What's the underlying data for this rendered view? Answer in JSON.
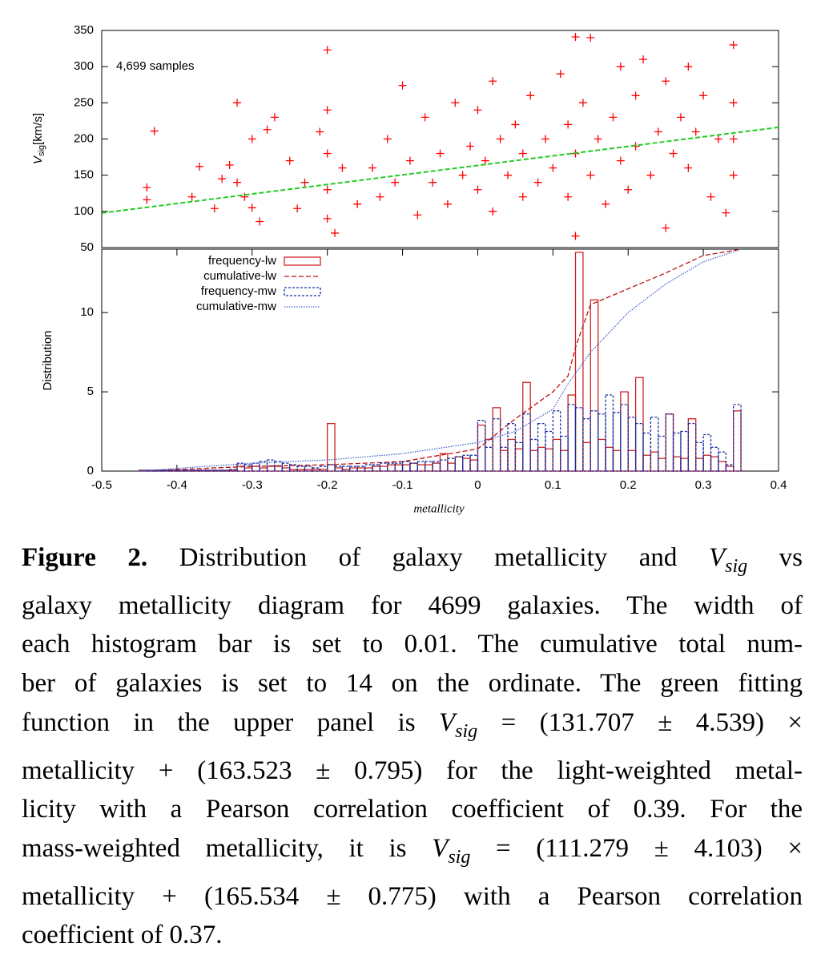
{
  "chart_data": [
    {
      "type": "scatter",
      "annotation": "4,699 samples",
      "ylabel": {
        "symbol": "V",
        "subscript": "sig",
        "unit": "[km/s]"
      },
      "xlim": [
        -0.5,
        0.4
      ],
      "ylim": [
        50,
        350
      ],
      "yticks": [
        50,
        100,
        150,
        200,
        250,
        300,
        350
      ],
      "color": "#ff0000",
      "x": [
        -0.44,
        -0.44,
        -0.43,
        -0.38,
        -0.37,
        -0.35,
        -0.34,
        -0.33,
        -0.32,
        -0.32,
        -0.31,
        -0.3,
        -0.3,
        -0.29,
        -0.28,
        -0.27,
        -0.25,
        -0.24,
        -0.23,
        -0.21,
        -0.2,
        -0.2,
        -0.2,
        -0.2,
        -0.2,
        -0.19,
        -0.18,
        -0.16,
        -0.14,
        -0.13,
        -0.12,
        -0.11,
        -0.1,
        -0.09,
        -0.08,
        -0.07,
        -0.06,
        -0.05,
        -0.04,
        -0.03,
        -0.02,
        -0.01,
        0.0,
        0.0,
        0.01,
        0.02,
        0.02,
        0.03,
        0.04,
        0.05,
        0.06,
        0.06,
        0.07,
        0.08,
        0.09,
        0.1,
        0.11,
        0.12,
        0.12,
        0.13,
        0.13,
        0.13,
        0.14,
        0.15,
        0.15,
        0.16,
        0.17,
        0.18,
        0.19,
        0.19,
        0.2,
        0.21,
        0.21,
        0.22,
        0.23,
        0.24,
        0.25,
        0.25,
        0.26,
        0.27,
        0.28,
        0.28,
        0.29,
        0.3,
        0.31,
        0.32,
        0.33,
        0.34,
        0.34,
        0.34,
        0.34
      ],
      "values": [
        133,
        116,
        211,
        120,
        162,
        104,
        145,
        164,
        250,
        140,
        120,
        200,
        105,
        86,
        213,
        230,
        170,
        104,
        140,
        210,
        323,
        240,
        180,
        130,
        90,
        70,
        160,
        110,
        160,
        120,
        200,
        140,
        274,
        170,
        95,
        230,
        140,
        180,
        110,
        250,
        150,
        190,
        240,
        130,
        170,
        280,
        100,
        200,
        150,
        220,
        120,
        180,
        260,
        140,
        200,
        160,
        290,
        220,
        120,
        341,
        180,
        66,
        250,
        340,
        150,
        200,
        110,
        230,
        170,
        300,
        130,
        260,
        190,
        310,
        150,
        210,
        77,
        280,
        180,
        230,
        300,
        160,
        210,
        260,
        120,
        200,
        98,
        330,
        250,
        200,
        150
      ],
      "fit": {
        "x": [
          -0.5,
          0.4
        ],
        "values": [
          97.7,
          216.2
        ],
        "color": "#22cc22"
      }
    },
    {
      "type": "histogram",
      "ylabel": "Distribution",
      "xlabel": "metallicity",
      "xlim": [
        -0.5,
        0.4
      ],
      "xticks": [
        -0.5,
        -0.4,
        -0.3,
        -0.2,
        -0.1,
        0,
        0.1,
        0.2,
        0.3,
        0.4
      ],
      "ylim": [
        0,
        14
      ],
      "yticks": [
        0,
        5,
        10
      ],
      "legend": "upper left",
      "bins": [
        -0.45,
        -0.44,
        -0.43,
        -0.42,
        -0.41,
        -0.4,
        -0.39,
        -0.38,
        -0.37,
        -0.36,
        -0.35,
        -0.34,
        -0.33,
        -0.32,
        -0.31,
        -0.3,
        -0.29,
        -0.28,
        -0.27,
        -0.26,
        -0.25,
        -0.24,
        -0.23,
        -0.22,
        -0.21,
        -0.2,
        -0.19,
        -0.18,
        -0.17,
        -0.16,
        -0.15,
        -0.14,
        -0.13,
        -0.12,
        -0.11,
        -0.1,
        -0.09,
        -0.08,
        -0.07,
        -0.06,
        -0.05,
        -0.04,
        -0.03,
        -0.02,
        -0.01,
        0.0,
        0.01,
        0.02,
        0.03,
        0.04,
        0.05,
        0.06,
        0.07,
        0.08,
        0.09,
        0.1,
        0.11,
        0.12,
        0.13,
        0.14,
        0.15,
        0.16,
        0.17,
        0.18,
        0.19,
        0.2,
        0.21,
        0.22,
        0.23,
        0.24,
        0.25,
        0.26,
        0.27,
        0.28,
        0.29,
        0.3,
        0.31,
        0.32,
        0.33,
        0.34,
        0.35
      ],
      "series": [
        {
          "name": "frequency-lw",
          "type": "histogram",
          "color": "#cc2222",
          "values": [
            0.05,
            0.05,
            0.05,
            0.05,
            0.05,
            0.05,
            0.05,
            0.05,
            0.05,
            0.05,
            0.05,
            0.05,
            0.05,
            0.3,
            0.2,
            0.3,
            0.2,
            0.3,
            0.3,
            0.2,
            0.1,
            0.1,
            0.1,
            0.1,
            0.1,
            3.0,
            0.2,
            0.1,
            0.2,
            0.2,
            0.2,
            0.3,
            0.3,
            0.4,
            0.4,
            0.4,
            0.5,
            0.4,
            0.4,
            0.5,
            1.1,
            0.5,
            0.9,
            0.8,
            0.7,
            2.9,
            2.0,
            4.0,
            1.3,
            2.0,
            1.4,
            5.6,
            1.3,
            1.5,
            1.4,
            2.0,
            1.3,
            4.8,
            13.8,
            1.8,
            10.8,
            2.0,
            1.5,
            1.3,
            5.0,
            1.3,
            5.9,
            1.0,
            1.2,
            0.8,
            3.6,
            0.9,
            0.8,
            3.3,
            0.8,
            1.0,
            0.9,
            0.6,
            0.3,
            3.8
          ]
        },
        {
          "name": "cumulative-lw",
          "type": "line",
          "color": "#bb1111",
          "x": [
            -0.45,
            -0.3,
            -0.2,
            -0.1,
            0,
            0.05,
            0.1,
            0.12,
            0.13,
            0.15,
            0.2,
            0.25,
            0.3,
            0.35
          ],
          "values": [
            0,
            0.3,
            0.4,
            0.6,
            1.4,
            3.3,
            5.0,
            6.0,
            7.8,
            10.5,
            11.5,
            12.5,
            13.6,
            14
          ]
        },
        {
          "name": "frequency-mw",
          "type": "histogram",
          "color": "#1a2ea0",
          "values": [
            0.05,
            0.05,
            0.05,
            0.05,
            0.05,
            0.05,
            0.05,
            0.05,
            0.05,
            0.05,
            0.05,
            0.05,
            0.1,
            0.5,
            0.4,
            0.5,
            0.6,
            0.7,
            0.6,
            0.5,
            0.4,
            0.3,
            0.3,
            0.2,
            0.3,
            0.4,
            0.3,
            0.3,
            0.3,
            0.3,
            0.4,
            0.4,
            0.5,
            0.5,
            0.5,
            0.6,
            0.5,
            0.6,
            0.6,
            0.6,
            0.7,
            0.8,
            0.9,
            1.0,
            1.0,
            3.2,
            1.5,
            3.3,
            1.5,
            3.0,
            1.8,
            3.6,
            2.0,
            3.0,
            2.5,
            3.8,
            2.2,
            4.2,
            4.0,
            3.3,
            3.8,
            3.6,
            4.8,
            3.7,
            4.2,
            3.4,
            3.0,
            2.4,
            3.4,
            2.2,
            3.6,
            2.4,
            2.5,
            3.0,
            1.8,
            2.3,
            1.5,
            1.2,
            0.4,
            4.2
          ]
        },
        {
          "name": "cumulative-mw",
          "type": "line",
          "color": "#4466cc",
          "x": [
            -0.45,
            -0.3,
            -0.2,
            -0.1,
            0,
            0.05,
            0.1,
            0.12,
            0.15,
            0.2,
            0.25,
            0.3,
            0.35
          ],
          "values": [
            0,
            0.5,
            0.7,
            1.1,
            1.8,
            2.5,
            3.9,
            5.5,
            7.5,
            10,
            11.8,
            13.2,
            14
          ]
        }
      ]
    }
  ],
  "caption": {
    "label": "Figure 2.",
    "lines": [
      [
        " Distribution of galaxy metallicity and ",
        "V",
        "sig",
        " vs"
      ],
      [
        "galaxy metallicity diagram for 4699 galaxies. The width of"
      ],
      [
        "each histogram bar is set to 0.01. The cumulative total num-"
      ],
      [
        "ber of galaxies is set to 14 on the ordinate. The green fitting"
      ],
      [
        "function in the upper panel is ",
        "V",
        "sig",
        " = (131.707 ± 4.539) ×"
      ],
      [
        "metallicity + (163.523 ± 0.795) for the light-weighted metal-"
      ],
      [
        "licity with a Pearson correlation coefficient of 0.39. For the"
      ],
      [
        "mass-weighted metallicity, it is ",
        "V",
        "sig",
        " = (111.279 ± 4.103) ×"
      ],
      [
        "metallicity + (165.534 ± 0.775) with a Pearson correlation"
      ],
      [
        "coefficient of 0.37."
      ]
    ]
  }
}
